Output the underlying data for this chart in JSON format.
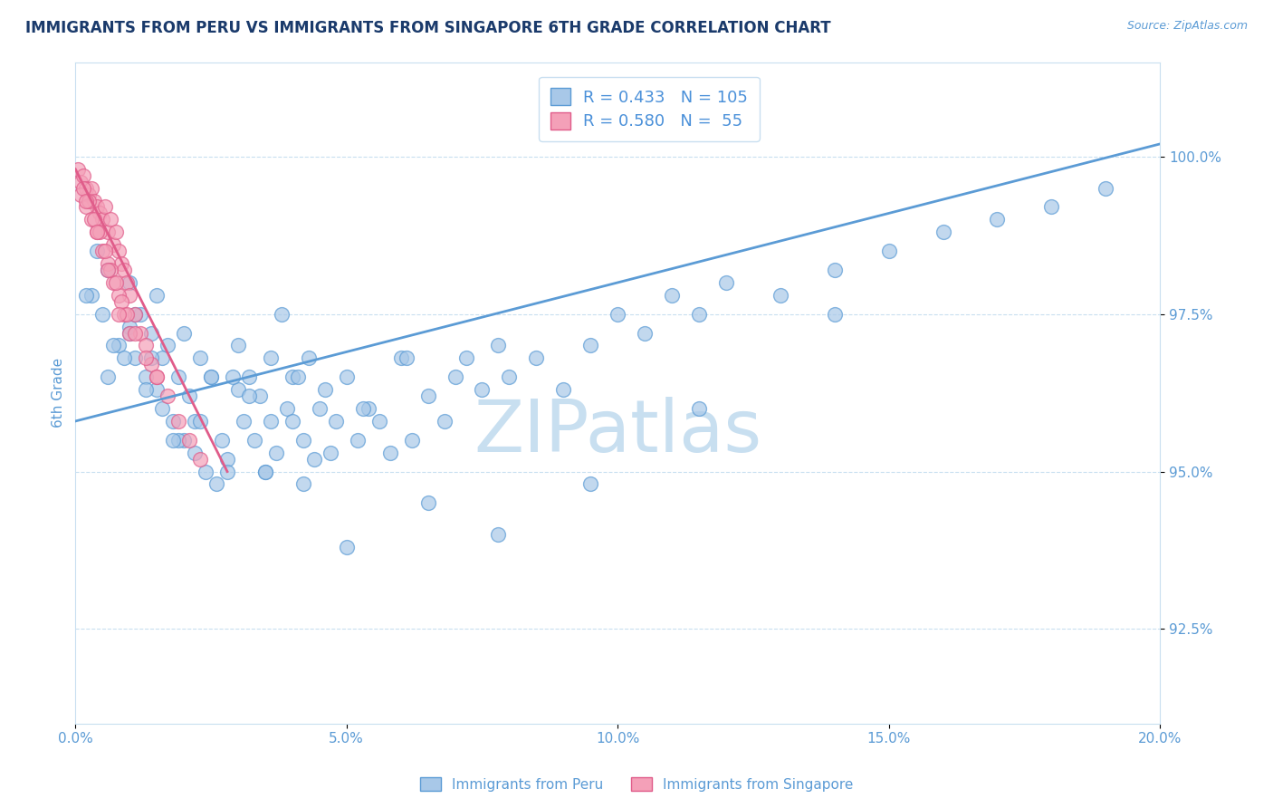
{
  "title": "IMMIGRANTS FROM PERU VS IMMIGRANTS FROM SINGAPORE 6TH GRADE CORRELATION CHART",
  "source_text": "Source: ZipAtlas.com",
  "ylabel": "6th Grade",
  "legend_label_blue": "Immigrants from Peru",
  "legend_label_pink": "Immigrants from Singapore",
  "r_blue": 0.433,
  "n_blue": 105,
  "r_pink": 0.58,
  "n_pink": 55,
  "xlim": [
    0.0,
    20.0
  ],
  "ylim": [
    91.0,
    101.5
  ],
  "yticks": [
    92.5,
    95.0,
    97.5,
    100.0
  ],
  "ytick_labels": [
    "92.5%",
    "95.0%",
    "97.5%",
    "100.0%"
  ],
  "xticks": [
    0.0,
    5.0,
    10.0,
    15.0,
    20.0
  ],
  "xtick_labels": [
    "0.0%",
    "5.0%",
    "10.0%",
    "15.0%",
    "20.0%"
  ],
  "color_blue": "#a8c8e8",
  "color_pink": "#f4a0b8",
  "color_blue_dark": "#5b9bd5",
  "color_pink_dark": "#e05c8a",
  "color_blue_text": "#4a90d9",
  "background_color": "#ffffff",
  "watermark_text": "ZIPatlas",
  "watermark_color": "#c8dff0",
  "title_color": "#1a3a6b",
  "axis_label_color": "#5b9bd5",
  "tick_label_color": "#5b9bd5",
  "grid_color": "#c8dff0",
  "blue_scatter_x": [
    0.3,
    0.5,
    0.6,
    0.8,
    1.0,
    1.0,
    1.1,
    1.2,
    1.3,
    1.4,
    1.5,
    1.5,
    1.6,
    1.7,
    1.8,
    1.9,
    2.0,
    2.0,
    2.1,
    2.2,
    2.3,
    2.4,
    2.5,
    2.6,
    2.7,
    2.8,
    3.0,
    3.0,
    3.1,
    3.2,
    3.3,
    3.4,
    3.5,
    3.6,
    3.7,
    3.8,
    3.9,
    4.0,
    4.0,
    4.2,
    4.3,
    4.4,
    4.5,
    4.6,
    4.8,
    5.0,
    5.2,
    5.4,
    5.6,
    5.8,
    6.0,
    6.2,
    6.5,
    6.8,
    7.0,
    7.2,
    7.5,
    7.8,
    8.0,
    8.5,
    9.0,
    9.5,
    10.0,
    10.5,
    11.0,
    11.5,
    12.0,
    13.0,
    14.0,
    15.0,
    16.0,
    17.0,
    18.0,
    19.0,
    0.4,
    0.7,
    0.9,
    1.1,
    1.3,
    1.6,
    1.9,
    2.2,
    2.5,
    2.8,
    3.2,
    3.6,
    4.1,
    4.7,
    5.3,
    6.1,
    0.2,
    0.6,
    1.0,
    1.4,
    1.8,
    2.3,
    2.9,
    3.5,
    4.2,
    5.0,
    6.5,
    7.8,
    9.5,
    11.5,
    14.0
  ],
  "blue_scatter_y": [
    97.8,
    97.5,
    98.2,
    97.0,
    97.3,
    98.0,
    96.8,
    97.5,
    96.5,
    97.2,
    96.3,
    97.8,
    96.0,
    97.0,
    95.8,
    96.5,
    95.5,
    97.2,
    96.2,
    95.3,
    96.8,
    95.0,
    96.5,
    94.8,
    95.5,
    95.2,
    96.3,
    97.0,
    95.8,
    96.5,
    95.5,
    96.2,
    95.0,
    96.8,
    95.3,
    97.5,
    96.0,
    95.8,
    96.5,
    95.5,
    96.8,
    95.2,
    96.0,
    96.3,
    95.8,
    96.5,
    95.5,
    96.0,
    95.8,
    95.3,
    96.8,
    95.5,
    96.2,
    95.8,
    96.5,
    96.8,
    96.3,
    97.0,
    96.5,
    96.8,
    96.3,
    97.0,
    97.5,
    97.2,
    97.8,
    97.5,
    98.0,
    97.8,
    98.2,
    98.5,
    98.8,
    99.0,
    99.2,
    99.5,
    98.5,
    97.0,
    96.8,
    97.5,
    96.3,
    96.8,
    95.5,
    95.8,
    96.5,
    95.0,
    96.2,
    95.8,
    96.5,
    95.3,
    96.0,
    96.8,
    97.8,
    96.5,
    97.2,
    96.8,
    95.5,
    95.8,
    96.5,
    95.0,
    94.8,
    93.8,
    94.5,
    94.0,
    94.8,
    96.0,
    97.5
  ],
  "pink_scatter_x": [
    0.05,
    0.1,
    0.15,
    0.2,
    0.25,
    0.3,
    0.35,
    0.4,
    0.45,
    0.5,
    0.55,
    0.6,
    0.65,
    0.7,
    0.75,
    0.8,
    0.85,
    0.9,
    0.95,
    1.0,
    1.1,
    1.2,
    1.3,
    1.4,
    1.5,
    0.1,
    0.2,
    0.3,
    0.4,
    0.5,
    0.6,
    0.7,
    0.8,
    0.9,
    1.0,
    0.15,
    0.25,
    0.35,
    0.45,
    0.55,
    0.65,
    0.75,
    0.85,
    0.95,
    1.1,
    1.3,
    1.5,
    1.7,
    1.9,
    2.1,
    2.3,
    0.2,
    0.4,
    0.6,
    0.8
  ],
  "pink_scatter_y": [
    99.8,
    99.6,
    99.7,
    99.5,
    99.4,
    99.5,
    99.3,
    99.2,
    99.1,
    99.0,
    99.2,
    98.8,
    99.0,
    98.6,
    98.8,
    98.5,
    98.3,
    98.2,
    98.0,
    97.8,
    97.5,
    97.2,
    97.0,
    96.7,
    96.5,
    99.4,
    99.2,
    99.0,
    98.8,
    98.5,
    98.3,
    98.0,
    97.8,
    97.5,
    97.2,
    99.5,
    99.3,
    99.0,
    98.8,
    98.5,
    98.2,
    98.0,
    97.7,
    97.5,
    97.2,
    96.8,
    96.5,
    96.2,
    95.8,
    95.5,
    95.2,
    99.3,
    98.8,
    98.2,
    97.5
  ],
  "blue_line_x": [
    0.0,
    20.0
  ],
  "blue_line_y": [
    95.8,
    100.2
  ],
  "pink_line_x": [
    0.0,
    2.8
  ],
  "pink_line_y": [
    99.8,
    95.0
  ]
}
